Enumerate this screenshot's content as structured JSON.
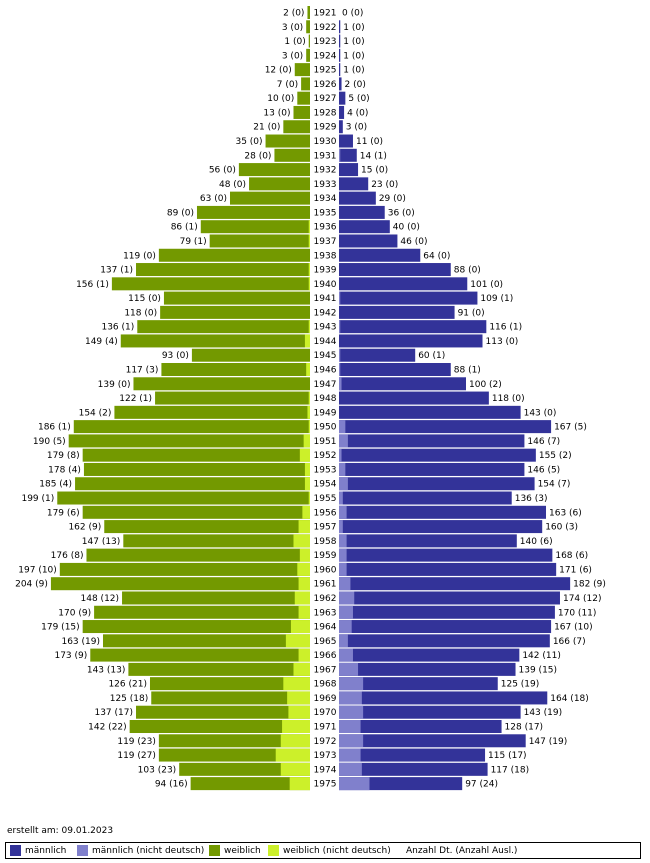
{
  "chart_data": {
    "type": "bar",
    "orientation": "horizontal-population-pyramid",
    "categories": [
      "1921",
      "1922",
      "1923",
      "1924",
      "1925",
      "1926",
      "1927",
      "1928",
      "1929",
      "1930",
      "1931",
      "1932",
      "1933",
      "1934",
      "1935",
      "1936",
      "1937",
      "1938",
      "1939",
      "1940",
      "1941",
      "1942",
      "1943",
      "1944",
      "1945",
      "1946",
      "1947",
      "1948",
      "1949",
      "1950",
      "1951",
      "1952",
      "1953",
      "1954",
      "1955",
      "1956",
      "1957",
      "1958",
      "1959",
      "1960",
      "1961",
      "1962",
      "1963",
      "1964",
      "1965",
      "1966",
      "1967",
      "1968",
      "1969",
      "1970",
      "1971",
      "1972",
      "1973",
      "1974",
      "1975"
    ],
    "series": [
      {
        "name": "männlich",
        "values": [
          0,
          1,
          1,
          1,
          1,
          2,
          5,
          4,
          3,
          11,
          14,
          15,
          23,
          29,
          36,
          40,
          46,
          64,
          88,
          101,
          109,
          91,
          116,
          113,
          60,
          88,
          100,
          118,
          143,
          167,
          146,
          155,
          146,
          154,
          136,
          163,
          160,
          140,
          168,
          171,
          182,
          174,
          170,
          167,
          166,
          142,
          139,
          125,
          164,
          143,
          128,
          147,
          115,
          117,
          97
        ],
        "color": "#333399"
      },
      {
        "name": "männlich (nicht deutsch)",
        "values": [
          0,
          0,
          0,
          0,
          0,
          0,
          0,
          0,
          0,
          0,
          1,
          0,
          0,
          0,
          0,
          0,
          0,
          0,
          0,
          0,
          1,
          0,
          1,
          0,
          1,
          1,
          2,
          0,
          0,
          5,
          7,
          2,
          5,
          7,
          3,
          6,
          3,
          6,
          6,
          6,
          9,
          12,
          11,
          10,
          7,
          11,
          15,
          19,
          18,
          19,
          17,
          19,
          17,
          18,
          24
        ],
        "color": "#8080cc"
      },
      {
        "name": "weiblich",
        "values": [
          2,
          3,
          1,
          3,
          12,
          7,
          10,
          13,
          21,
          35,
          28,
          56,
          48,
          63,
          89,
          86,
          79,
          119,
          137,
          156,
          115,
          118,
          136,
          149,
          93,
          117,
          139,
          122,
          154,
          186,
          190,
          179,
          178,
          185,
          199,
          179,
          162,
          147,
          176,
          197,
          204,
          148,
          170,
          179,
          163,
          173,
          143,
          126,
          125,
          137,
          142,
          119,
          119,
          103,
          94
        ],
        "color": "#739900"
      },
      {
        "name": "weiblich (nicht deutsch)",
        "values": [
          0,
          0,
          0,
          0,
          0,
          0,
          0,
          0,
          0,
          0,
          0,
          0,
          0,
          0,
          0,
          1,
          1,
          0,
          1,
          1,
          0,
          0,
          1,
          4,
          0,
          3,
          0,
          1,
          2,
          1,
          5,
          8,
          4,
          4,
          1,
          6,
          9,
          13,
          8,
          10,
          9,
          12,
          9,
          15,
          19,
          9,
          13,
          21,
          18,
          17,
          22,
          23,
          27,
          23,
          16
        ],
        "color": "#ccf02a"
      }
    ],
    "label_format": "Anzahl Dt. (Anzahl Ausl.)"
  },
  "footer": {
    "created_label": "erstellt am: 09.01.2023"
  },
  "legend": {
    "items": [
      {
        "label": "männlich",
        "color": "#333399"
      },
      {
        "label": "männlich (nicht deutsch)",
        "color": "#8080cc"
      },
      {
        "label": "weiblich",
        "color": "#739900"
      },
      {
        "label": "weiblich (nicht deutsch)",
        "color": "#ccf02a"
      }
    ],
    "note": "Anzahl Dt. (Anzahl Ausl.)"
  }
}
